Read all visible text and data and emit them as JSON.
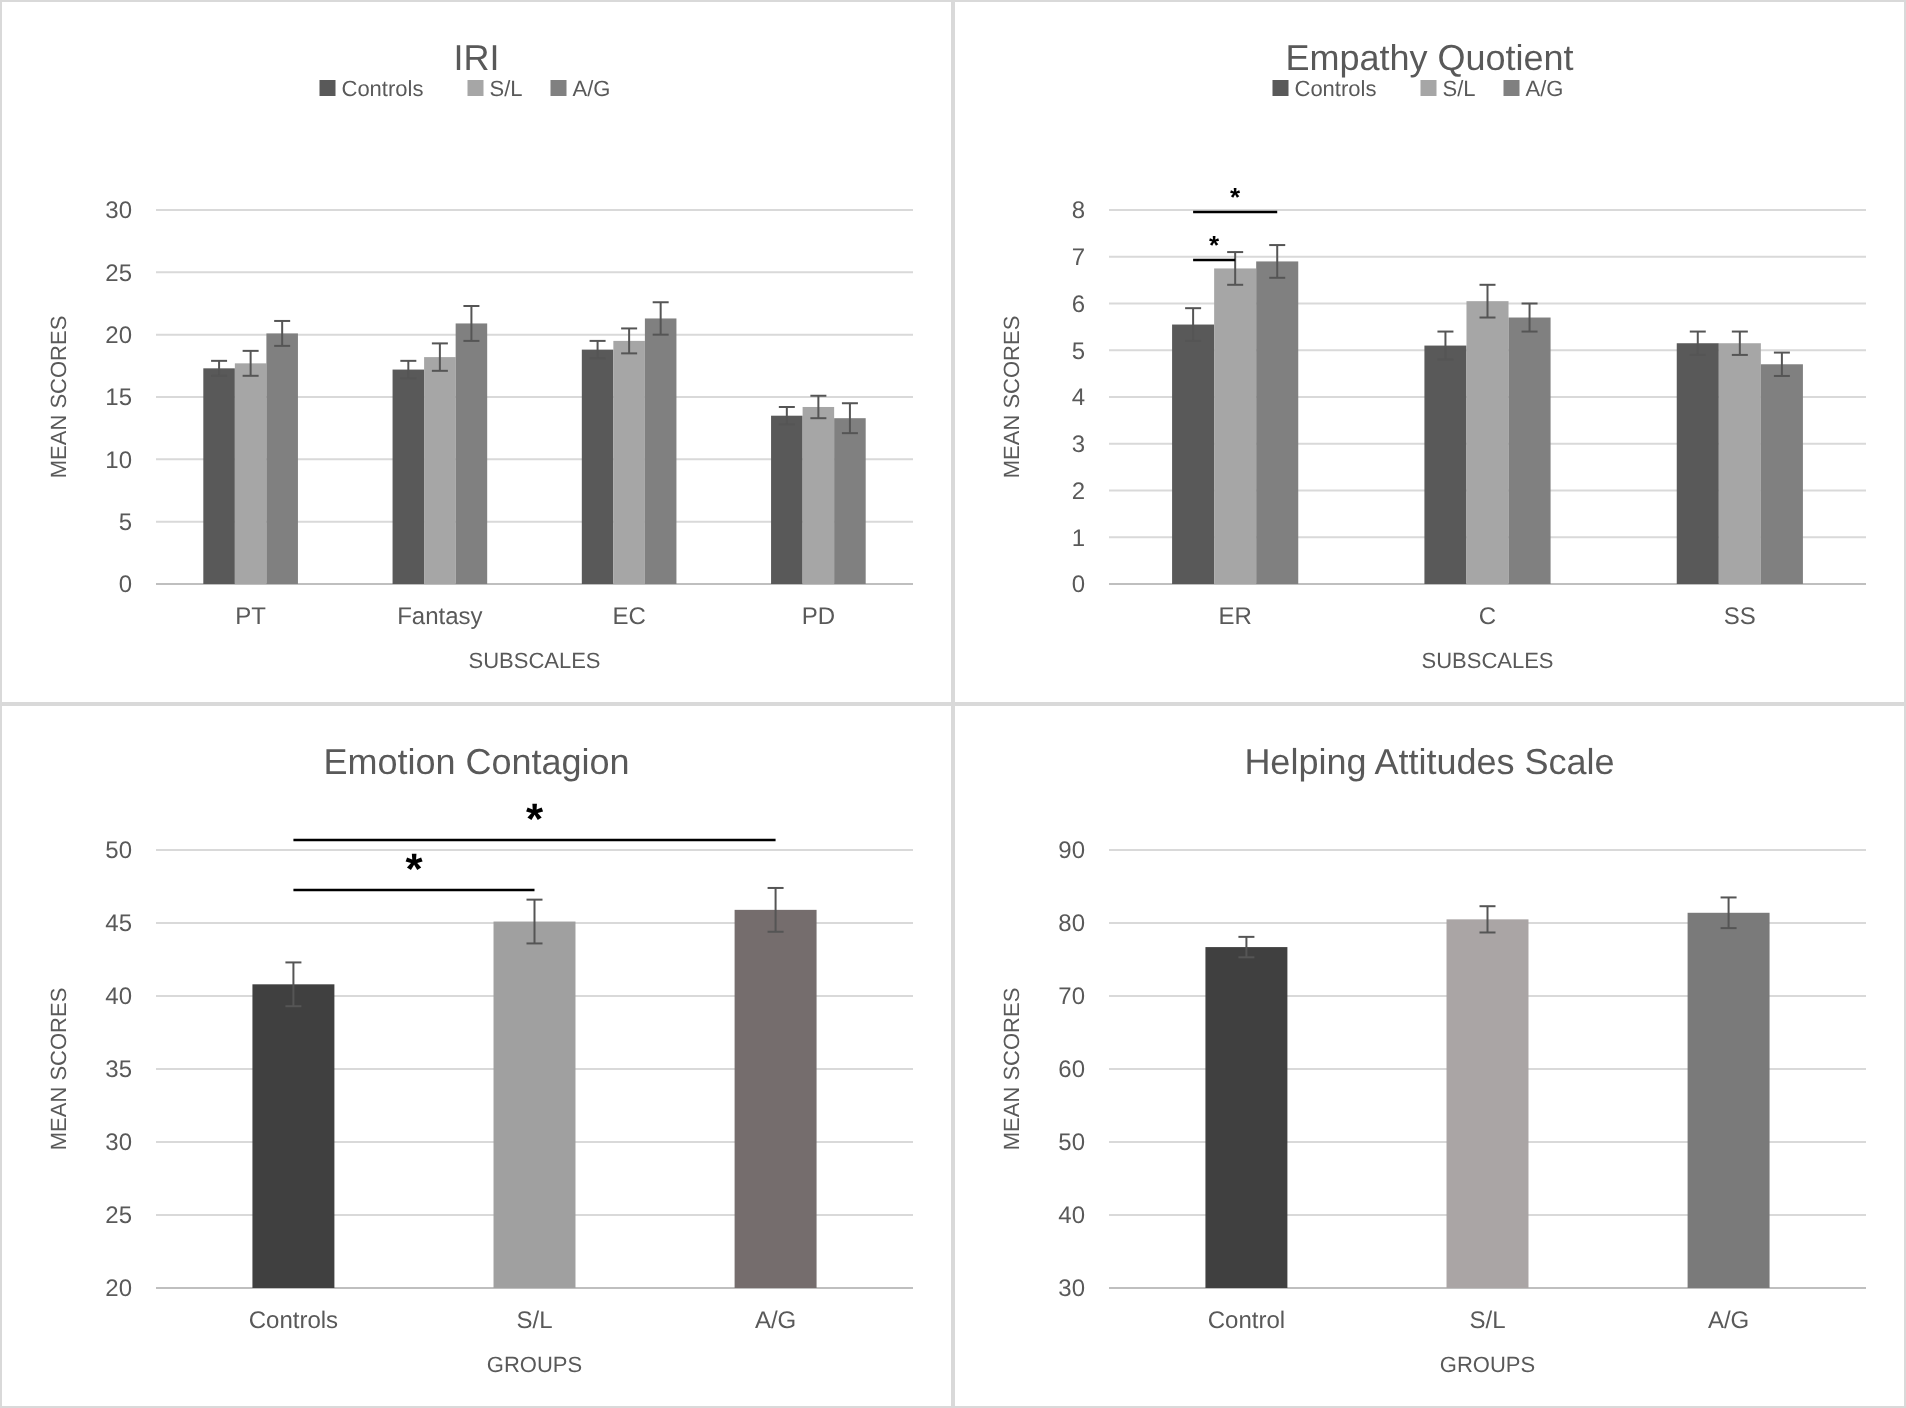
{
  "chart_data": [
    {
      "type": "bar",
      "title": "IRI",
      "xlabel": "SUBSCALES",
      "ylabel": "MEAN SCORES",
      "categories": [
        "PT",
        "Fantasy",
        "EC",
        "PD"
      ],
      "series": [
        {
          "name": "Controls",
          "color": "#595959",
          "values": [
            17.3,
            17.2,
            18.8,
            13.5
          ],
          "errors": [
            0.6,
            0.7,
            0.7,
            0.7
          ]
        },
        {
          "name": "S/L",
          "color": "#a6a6a6",
          "values": [
            17.7,
            18.2,
            19.5,
            14.2
          ],
          "errors": [
            1.0,
            1.1,
            1.0,
            0.9
          ]
        },
        {
          "name": "A/G",
          "color": "#808080",
          "values": [
            20.1,
            20.9,
            21.3,
            13.3
          ],
          "errors": [
            1.0,
            1.4,
            1.3,
            1.2
          ]
        }
      ],
      "ylim": [
        0,
        30
      ],
      "yticks": [
        0,
        5,
        10,
        15,
        20,
        25,
        30
      ],
      "grid": "y",
      "legend": "top"
    },
    {
      "type": "bar",
      "title": "Empathy Quotient",
      "xlabel": "SUBSCALES",
      "ylabel": "MEAN SCORES",
      "categories": [
        "ER",
        "C",
        "SS"
      ],
      "series": [
        {
          "name": "Controls",
          "color": "#595959",
          "values": [
            5.55,
            5.1,
            5.15
          ],
          "errors": [
            0.35,
            0.3,
            0.25
          ]
        },
        {
          "name": "S/L",
          "color": "#a6a6a6",
          "values": [
            6.75,
            6.05,
            5.15
          ],
          "errors": [
            0.35,
            0.35,
            0.25
          ]
        },
        {
          "name": "A/G",
          "color": "#808080",
          "values": [
            6.9,
            5.7,
            4.7
          ],
          "errors": [
            0.35,
            0.3,
            0.25
          ]
        }
      ],
      "ylim": [
        0,
        8
      ],
      "yticks": [
        0,
        1,
        2,
        3,
        4,
        5,
        6,
        7,
        8
      ],
      "grid": "y",
      "legend": "top",
      "annotations": [
        "*",
        "*"
      ]
    },
    {
      "type": "bar",
      "title": "Emotion Contagion",
      "xlabel": "GROUPS",
      "ylabel": "MEAN SCORES",
      "categories": [
        "Controls",
        "S/L",
        "A/G"
      ],
      "values": [
        40.8,
        45.1,
        45.9
      ],
      "errors": [
        1.5,
        1.5,
        1.5
      ],
      "colors": [
        "#404040",
        "#a0a0a0",
        "#756d6d"
      ],
      "ylim": [
        20,
        50
      ],
      "yticks": [
        20,
        25,
        30,
        35,
        40,
        45,
        50
      ],
      "grid": "y",
      "annotations": [
        "*",
        "*"
      ]
    },
    {
      "type": "bar",
      "title": "Helping Attitudes Scale",
      "xlabel": "GROUPS",
      "ylabel": "MEAN SCORES",
      "categories": [
        "Control",
        "S/L",
        "A/G"
      ],
      "values": [
        76.7,
        80.5,
        81.4
      ],
      "errors": [
        1.4,
        1.8,
        2.1
      ],
      "colors": [
        "#404040",
        "#aaa5a5",
        "#7a7a7a"
      ],
      "ylim": [
        30,
        90
      ],
      "yticks": [
        30,
        40,
        50,
        60,
        70,
        80,
        90
      ],
      "grid": "y"
    }
  ]
}
